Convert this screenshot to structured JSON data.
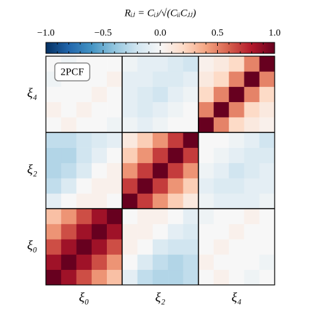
{
  "chart_data": {
    "type": "heatmap",
    "title": "Rᵢⱼ = Cᵢⱼ/√(CᵢᵢCⱼⱼ)",
    "annotation": "2PCF",
    "categories": [
      "ξ₀",
      "ξ₂",
      "ξ₄"
    ],
    "zlim": [
      -1,
      1
    ],
    "colors": [
      "#053061",
      "#2166ac",
      "#4393c3",
      "#92c5de",
      "#d1e5f0",
      "#f7f7f7",
      "#fddbc7",
      "#f4a582",
      "#d6604d",
      "#b2182b",
      "#67001f"
    ],
    "cticks": [
      {
        "value": -1,
        "label": "−1.0"
      },
      {
        "value": -0.5,
        "label": "−0.5"
      },
      {
        "value": 0,
        "label": "0.0"
      },
      0.5,
      {
        "value": 1,
        "label": "1.0"
      }
    ],
    "cticks_minor": [
      -0.9,
      -0.8,
      -0.7,
      -0.6,
      -0.4,
      -0.3,
      -0.2,
      -0.1,
      0.1,
      0.2,
      0.3,
      0.4,
      0.6,
      0.7,
      0.8,
      0.9
    ],
    "z": [
      [
        1,
        0.85,
        0.65,
        0.45,
        0.3,
        -0.1,
        -0.25,
        -0.3,
        -0.3,
        -0.25,
        0,
        0.05,
        0,
        -0.05,
        0
      ],
      [
        0.85,
        1,
        0.85,
        0.65,
        0.45,
        0,
        -0.15,
        -0.25,
        -0.3,
        -0.25,
        0.05,
        0,
        0,
        0,
        -0.05
      ],
      [
        0.65,
        0.85,
        1,
        0.85,
        0.65,
        0.05,
        0,
        -0.15,
        -0.2,
        -0.2,
        0,
        0.05,
        0,
        0,
        0
      ],
      [
        0.45,
        0.65,
        0.85,
        1,
        0.85,
        0.05,
        0.05,
        0,
        -0.1,
        -0.15,
        0,
        0,
        0.05,
        0,
        0
      ],
      [
        0.3,
        0.45,
        0.65,
        0.85,
        1,
        0,
        0.05,
        0.05,
        0,
        -0.1,
        -0.05,
        0,
        0,
        0.05,
        0
      ],
      [
        -0.1,
        0,
        0.05,
        0.05,
        0,
        1,
        0.7,
        0.45,
        0.25,
        0.1,
        -0.05,
        -0.1,
        -0.1,
        -0.1,
        -0.05
      ],
      [
        -0.25,
        -0.15,
        0,
        0.05,
        0.05,
        0.7,
        1,
        0.7,
        0.45,
        0.25,
        -0.1,
        -0.15,
        -0.15,
        -0.1,
        -0.1
      ],
      [
        -0.3,
        -0.25,
        -0.15,
        0,
        0.05,
        0.45,
        0.7,
        1,
        0.7,
        0.45,
        -0.05,
        -0.1,
        -0.2,
        -0.15,
        -0.1
      ],
      [
        -0.3,
        -0.3,
        -0.2,
        -0.1,
        0,
        0.25,
        0.45,
        0.7,
        1,
        0.7,
        0,
        -0.05,
        -0.1,
        -0.15,
        -0.15
      ],
      [
        -0.25,
        -0.25,
        -0.2,
        -0.15,
        -0.1,
        0.1,
        0.25,
        0.45,
        0.7,
        1,
        0,
        0,
        -0.05,
        -0.1,
        -0.2
      ],
      [
        0,
        0.05,
        0,
        0,
        -0.05,
        -0.05,
        -0.1,
        -0.05,
        0,
        0,
        1,
        0.5,
        0.2,
        0.1,
        0.05
      ],
      [
        0.05,
        0,
        0.05,
        0,
        0,
        -0.1,
        -0.15,
        -0.1,
        -0.05,
        0,
        0.5,
        1,
        0.5,
        0.2,
        0.1
      ],
      [
        0,
        0,
        0,
        0.05,
        0,
        -0.1,
        -0.15,
        -0.2,
        -0.1,
        -0.05,
        0.2,
        0.5,
        1,
        0.5,
        0.2
      ],
      [
        -0.05,
        0,
        0,
        0,
        0.05,
        -0.1,
        -0.1,
        -0.15,
        -0.15,
        -0.1,
        0.1,
        0.2,
        0.5,
        1,
        0.5
      ],
      [
        0,
        -0.05,
        0,
        0,
        0,
        -0.05,
        -0.1,
        -0.1,
        -0.15,
        -0.2,
        0.05,
        0.1,
        0.2,
        0.5,
        1
      ]
    ]
  }
}
